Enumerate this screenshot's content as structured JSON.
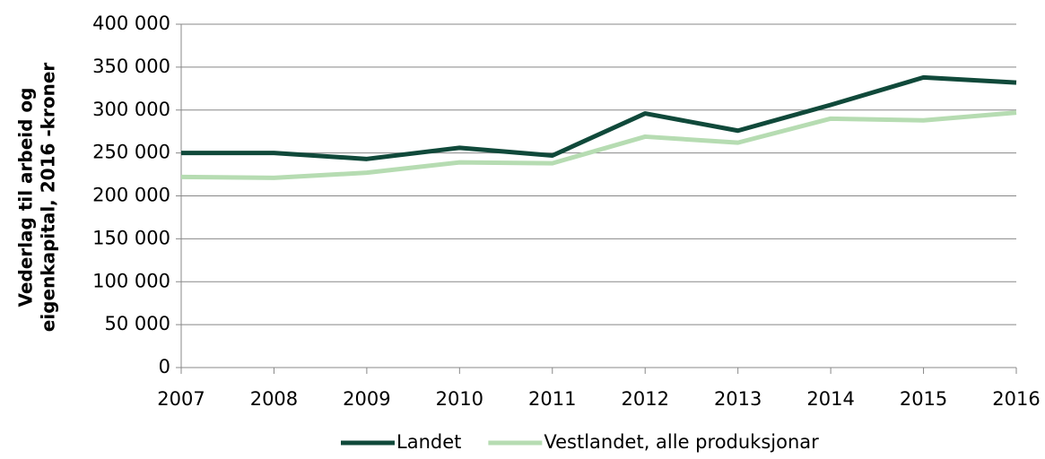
{
  "chart_data": {
    "type": "line",
    "ylabel": [
      "Vederlag til arbeid og",
      "eigenkapital, 2016 -kroner"
    ],
    "x": [
      2007,
      2008,
      2009,
      2010,
      2011,
      2012,
      2013,
      2014,
      2015,
      2016
    ],
    "xlim": [
      2007,
      2016
    ],
    "xticks": [
      2007,
      2008,
      2009,
      2010,
      2011,
      2012,
      2013,
      2014,
      2015,
      2016
    ],
    "ylim": [
      0,
      400000
    ],
    "yticks": [
      0,
      {
        "value": 50000,
        "label": "50 000"
      },
      {
        "value": 100000,
        "label": "100 000"
      },
      {
        "value": 150000,
        "label": "150 000"
      },
      {
        "value": 200000,
        "label": "200 000"
      },
      {
        "value": 250000,
        "label": "250 000"
      },
      {
        "value": 300000,
        "label": "300 000"
      },
      {
        "value": 350000,
        "label": "350 000"
      },
      {
        "value": 400000,
        "label": "400 000"
      }
    ],
    "grid": true,
    "legend": "bottom",
    "series": [
      {
        "name": "Landet",
        "color": "#10493a",
        "values": [
          250000,
          250000,
          243000,
          256000,
          247000,
          296000,
          276000,
          306000,
          338000,
          332000
        ]
      },
      {
        "name": "Vestlandet, alle produksjonar",
        "color": "#b6dcb2",
        "values": [
          222000,
          221000,
          227000,
          239000,
          238000,
          269000,
          262000,
          290000,
          288000,
          297000
        ]
      }
    ]
  }
}
